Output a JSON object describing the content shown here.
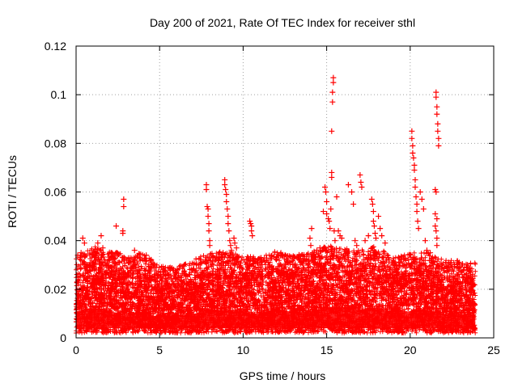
{
  "chart_data": {
    "type": "scatter",
    "title": "Day 200 of 2021, Rate Of TEC Index for receiver sthl",
    "xlabel": "GPS time / hours",
    "ylabel": "ROTI / TECUs",
    "xlim": [
      0,
      25
    ],
    "ylim": [
      0,
      0.12
    ],
    "x_ticks": [
      "0",
      "5",
      "10",
      "15",
      "20",
      "25"
    ],
    "y_ticks": [
      "0",
      "0.02",
      "0.04",
      "0.06",
      "0.08",
      "0.1",
      "0.12"
    ],
    "grid": true,
    "marker": "+",
    "color": "#ff0000",
    "x_range_data": [
      0,
      23.9
    ],
    "series": [
      {
        "name": "ROTI",
        "points": [
          [
            0.1,
            0.034
          ],
          [
            0.3,
            0.035
          ],
          [
            0.4,
            0.041
          ],
          [
            0.5,
            0.039
          ],
          [
            0.5,
            0.031
          ],
          [
            0.6,
            0.029
          ],
          [
            0.8,
            0.03
          ],
          [
            1.1,
            0.033
          ],
          [
            1.3,
            0.039
          ],
          [
            1.5,
            0.042
          ],
          [
            1.6,
            0.037
          ],
          [
            1.8,
            0.03
          ],
          [
            2.0,
            0.032
          ],
          [
            2.2,
            0.033
          ],
          [
            2.4,
            0.046
          ],
          [
            2.6,
            0.031
          ],
          [
            2.8,
            0.044
          ],
          [
            2.8,
            0.043
          ],
          [
            2.85,
            0.057
          ],
          [
            2.85,
            0.054
          ],
          [
            3.2,
            0.031
          ],
          [
            3.5,
            0.036
          ],
          [
            3.8,
            0.033
          ],
          [
            4.2,
            0.034
          ],
          [
            4.5,
            0.032
          ],
          [
            4.8,
            0.029
          ],
          [
            5.2,
            0.027
          ],
          [
            6.0,
            0.025
          ],
          [
            6.8,
            0.026
          ],
          [
            7.2,
            0.03
          ],
          [
            7.5,
            0.031
          ],
          [
            7.8,
            0.063
          ],
          [
            7.8,
            0.061
          ],
          [
            7.85,
            0.054
          ],
          [
            7.9,
            0.053
          ],
          [
            7.9,
            0.05
          ],
          [
            7.95,
            0.047
          ],
          [
            7.95,
            0.044
          ],
          [
            8.0,
            0.04
          ],
          [
            8.0,
            0.038
          ],
          [
            8.2,
            0.03
          ],
          [
            8.5,
            0.032
          ],
          [
            8.8,
            0.035
          ],
          [
            8.9,
            0.065
          ],
          [
            8.9,
            0.063
          ],
          [
            8.95,
            0.061
          ],
          [
            9.0,
            0.059
          ],
          [
            9.0,
            0.056
          ],
          [
            9.05,
            0.053
          ],
          [
            9.1,
            0.05
          ],
          [
            9.1,
            0.047
          ],
          [
            9.15,
            0.044
          ],
          [
            9.2,
            0.04
          ],
          [
            9.25,
            0.038
          ],
          [
            9.3,
            0.036
          ],
          [
            9.4,
            0.034
          ],
          [
            9.45,
            0.041
          ],
          [
            9.5,
            0.039
          ],
          [
            9.6,
            0.037
          ],
          [
            9.7,
            0.033
          ],
          [
            10.4,
            0.048
          ],
          [
            10.45,
            0.047
          ],
          [
            10.5,
            0.046
          ],
          [
            10.5,
            0.044
          ],
          [
            10.55,
            0.042
          ],
          [
            11.0,
            0.03
          ],
          [
            11.5,
            0.031
          ],
          [
            12.0,
            0.033
          ],
          [
            12.3,
            0.034
          ],
          [
            12.6,
            0.032
          ],
          [
            13.1,
            0.03
          ],
          [
            13.5,
            0.031
          ],
          [
            14.0,
            0.041
          ],
          [
            14.05,
            0.038
          ],
          [
            14.1,
            0.045
          ],
          [
            14.2,
            0.034
          ],
          [
            14.6,
            0.037
          ],
          [
            14.8,
            0.052
          ],
          [
            14.9,
            0.062
          ],
          [
            14.95,
            0.06
          ],
          [
            15.0,
            0.056
          ],
          [
            15.0,
            0.051
          ],
          [
            15.1,
            0.049
          ],
          [
            15.15,
            0.048
          ],
          [
            15.2,
            0.045
          ],
          [
            15.25,
            0.053
          ],
          [
            15.3,
            0.068
          ],
          [
            15.3,
            0.066
          ],
          [
            15.3,
            0.085
          ],
          [
            15.35,
            0.097
          ],
          [
            15.35,
            0.101
          ],
          [
            15.4,
            0.105
          ],
          [
            15.4,
            0.107
          ],
          [
            15.45,
            0.044
          ],
          [
            15.5,
            0.04
          ],
          [
            15.6,
            0.058
          ],
          [
            15.7,
            0.044
          ],
          [
            15.8,
            0.042
          ],
          [
            15.9,
            0.041
          ],
          [
            16.1,
            0.036
          ],
          [
            16.3,
            0.063
          ],
          [
            16.5,
            0.06
          ],
          [
            16.6,
            0.055
          ],
          [
            16.7,
            0.04
          ],
          [
            16.8,
            0.038
          ],
          [
            17.0,
            0.067
          ],
          [
            17.05,
            0.064
          ],
          [
            17.1,
            0.062
          ],
          [
            17.3,
            0.04
          ],
          [
            17.5,
            0.042
          ],
          [
            17.7,
            0.057
          ],
          [
            17.75,
            0.055
          ],
          [
            17.8,
            0.052
          ],
          [
            17.8,
            0.048
          ],
          [
            17.85,
            0.046
          ],
          [
            17.9,
            0.043
          ],
          [
            17.95,
            0.041
          ],
          [
            18.1,
            0.05
          ],
          [
            18.2,
            0.045
          ],
          [
            18.3,
            0.042
          ],
          [
            18.5,
            0.039
          ],
          [
            18.7,
            0.033
          ],
          [
            19.0,
            0.03
          ],
          [
            19.4,
            0.031
          ],
          [
            19.8,
            0.03
          ],
          [
            20.1,
            0.085
          ],
          [
            20.1,
            0.082
          ],
          [
            20.15,
            0.079
          ],
          [
            20.15,
            0.076
          ],
          [
            20.2,
            0.074
          ],
          [
            20.25,
            0.071
          ],
          [
            20.25,
            0.069
          ],
          [
            20.3,
            0.065
          ],
          [
            20.3,
            0.062
          ],
          [
            20.35,
            0.058
          ],
          [
            20.4,
            0.055
          ],
          [
            20.4,
            0.052
          ],
          [
            20.45,
            0.048
          ],
          [
            20.5,
            0.045
          ],
          [
            20.6,
            0.06
          ],
          [
            20.7,
            0.057
          ],
          [
            20.8,
            0.053
          ],
          [
            20.9,
            0.04
          ],
          [
            21.0,
            0.036
          ],
          [
            21.2,
            0.035
          ],
          [
            21.55,
            0.101
          ],
          [
            21.55,
            0.099
          ],
          [
            21.6,
            0.095
          ],
          [
            21.6,
            0.092
          ],
          [
            21.65,
            0.088
          ],
          [
            21.65,
            0.085
          ],
          [
            21.7,
            0.082
          ],
          [
            21.7,
            0.079
          ],
          [
            21.5,
            0.061
          ],
          [
            21.55,
            0.06
          ],
          [
            21.5,
            0.051
          ],
          [
            21.6,
            0.049
          ],
          [
            21.5,
            0.046
          ],
          [
            21.55,
            0.044
          ],
          [
            21.6,
            0.041
          ],
          [
            21.6,
            0.038
          ],
          [
            21.9,
            0.03
          ],
          [
            22.3,
            0.031
          ],
          [
            22.8,
            0.029
          ],
          [
            23.2,
            0.028
          ],
          [
            23.6,
            0.027
          ]
        ],
        "dense_band": [
          [
            0,
            0.012,
            0.026
          ],
          [
            1,
            0.014,
            0.031
          ],
          [
            2,
            0.012,
            0.029
          ],
          [
            3,
            0.011,
            0.027
          ],
          [
            4,
            0.012,
            0.028
          ],
          [
            5,
            0.009,
            0.023
          ],
          [
            6,
            0.009,
            0.022
          ],
          [
            7,
            0.011,
            0.025
          ],
          [
            8,
            0.012,
            0.028
          ],
          [
            9,
            0.013,
            0.029
          ],
          [
            10,
            0.012,
            0.027
          ],
          [
            11,
            0.011,
            0.026
          ],
          [
            12,
            0.013,
            0.029
          ],
          [
            13,
            0.012,
            0.027
          ],
          [
            14,
            0.012,
            0.028
          ],
          [
            15,
            0.014,
            0.031
          ],
          [
            16,
            0.014,
            0.03
          ],
          [
            17,
            0.013,
            0.029
          ],
          [
            18,
            0.014,
            0.031
          ],
          [
            19,
            0.012,
            0.026
          ],
          [
            20,
            0.012,
            0.028
          ],
          [
            21,
            0.013,
            0.028
          ],
          [
            22,
            0.011,
            0.025
          ],
          [
            23,
            0.011,
            0.025
          ],
          [
            23.9,
            0.01,
            0.024
          ]
        ]
      }
    ]
  }
}
